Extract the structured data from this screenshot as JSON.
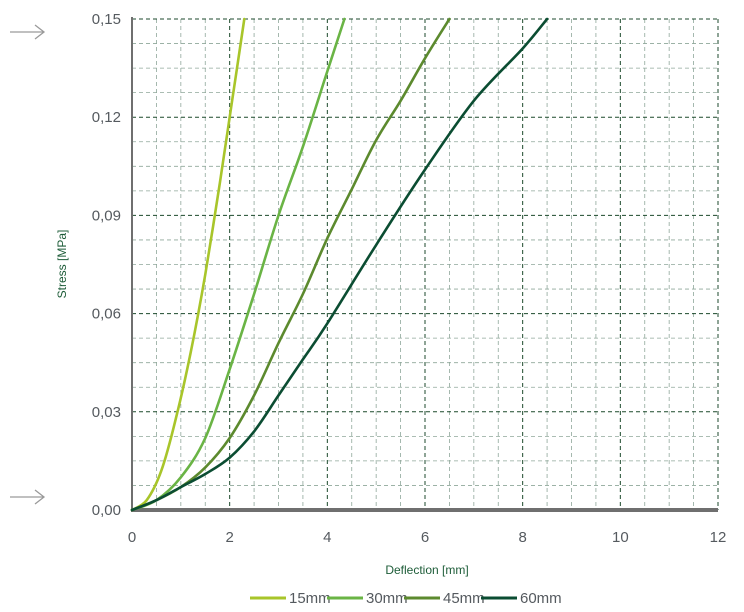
{
  "chart_data": {
    "type": "line",
    "title": "",
    "xlabel": "Deflection [mm]",
    "ylabel": "Stress [MPa]",
    "xlim": [
      0,
      12
    ],
    "ylim": [
      0,
      0.15
    ],
    "x_ticks": [
      0,
      2,
      4,
      6,
      8,
      10,
      12
    ],
    "y_ticks": [
      0,
      0.03,
      0.06,
      0.09,
      0.12,
      0.15
    ],
    "x_tick_labels": [
      "0",
      "2",
      "4",
      "6",
      "8",
      "10",
      "12"
    ],
    "y_tick_labels": [
      "0,00",
      "0,03",
      "0,06",
      "0,09",
      "0,12",
      "0,15"
    ],
    "grid": true,
    "legend_position": "bottom-right",
    "series": [
      {
        "name": "15mm",
        "color": "#a8c52a",
        "points": [
          [
            0,
            0
          ],
          [
            0.3,
            0.003
          ],
          [
            0.6,
            0.012
          ],
          [
            0.9,
            0.028
          ],
          [
            1.2,
            0.048
          ],
          [
            1.5,
            0.072
          ],
          [
            1.8,
            0.1
          ],
          [
            2.05,
            0.125
          ],
          [
            2.3,
            0.15
          ]
        ]
      },
      {
        "name": "30mm",
        "color": "#6ab445",
        "points": [
          [
            0,
            0
          ],
          [
            0.5,
            0.003
          ],
          [
            1.0,
            0.01
          ],
          [
            1.5,
            0.022
          ],
          [
            2.0,
            0.043
          ],
          [
            2.5,
            0.066
          ],
          [
            3.0,
            0.09
          ],
          [
            3.5,
            0.111
          ],
          [
            4.0,
            0.134
          ],
          [
            4.35,
            0.15
          ]
        ]
      },
      {
        "name": "45mm",
        "color": "#5c8a2e",
        "points": [
          [
            0,
            0
          ],
          [
            0.5,
            0.003
          ],
          [
            1.0,
            0.007
          ],
          [
            1.5,
            0.013
          ],
          [
            2.0,
            0.022
          ],
          [
            2.5,
            0.035
          ],
          [
            3.0,
            0.051
          ],
          [
            3.5,
            0.066
          ],
          [
            4.0,
            0.083
          ],
          [
            4.5,
            0.098
          ],
          [
            5.0,
            0.113
          ],
          [
            5.5,
            0.125
          ],
          [
            6.0,
            0.138
          ],
          [
            6.5,
            0.15
          ]
        ]
      },
      {
        "name": "60mm",
        "color": "#0b4d32",
        "points": [
          [
            0,
            0
          ],
          [
            0.5,
            0.003
          ],
          [
            1.0,
            0.007
          ],
          [
            1.5,
            0.011
          ],
          [
            2.0,
            0.016
          ],
          [
            2.5,
            0.024
          ],
          [
            3.0,
            0.035
          ],
          [
            3.5,
            0.046
          ],
          [
            4.0,
            0.057
          ],
          [
            5.0,
            0.081
          ],
          [
            6.0,
            0.104
          ],
          [
            7.0,
            0.125
          ],
          [
            8.0,
            0.141
          ],
          [
            8.5,
            0.15
          ]
        ]
      }
    ]
  }
}
